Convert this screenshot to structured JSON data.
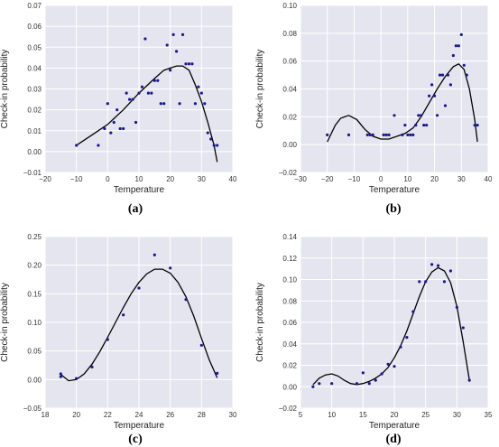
{
  "chart_data": [
    {
      "type": "scatter",
      "panel_label": "(a)",
      "xlabel": "Temperature",
      "ylabel": "Check-in probability",
      "xlim": [
        -20,
        40
      ],
      "ylim": [
        -0.01,
        0.07
      ],
      "xticks": [
        -20,
        -10,
        0,
        10,
        20,
        30,
        40
      ],
      "yticks": [
        -0.01,
        0.0,
        0.01,
        0.02,
        0.03,
        0.04,
        0.05,
        0.06,
        0.07
      ],
      "xtick_labels": [
        "−20",
        "−10",
        "0",
        "10",
        "20",
        "30",
        "40"
      ],
      "ytick_labels": [
        "−0.01",
        "0.00",
        "0.01",
        "0.02",
        "0.03",
        "0.04",
        "0.05",
        "0.06",
        "0.07"
      ],
      "grid": true,
      "points": [
        [
          -10,
          0.003
        ],
        [
          -3,
          0.003
        ],
        [
          -1,
          0.011
        ],
        [
          0,
          0.023
        ],
        [
          1,
          0.009
        ],
        [
          2,
          0.014
        ],
        [
          3,
          0.02
        ],
        [
          4,
          0.011
        ],
        [
          5,
          0.011
        ],
        [
          6,
          0.028
        ],
        [
          7,
          0.025
        ],
        [
          8,
          0.025
        ],
        [
          9,
          0.014
        ],
        [
          10,
          0.028
        ],
        [
          11,
          0.031
        ],
        [
          12,
          0.054
        ],
        [
          13,
          0.028
        ],
        [
          14,
          0.028
        ],
        [
          15,
          0.034
        ],
        [
          16,
          0.034
        ],
        [
          17,
          0.023
        ],
        [
          18,
          0.023
        ],
        [
          19,
          0.051
        ],
        [
          20,
          0.039
        ],
        [
          21,
          0.056
        ],
        [
          22,
          0.048
        ],
        [
          23,
          0.023
        ],
        [
          24,
          0.056
        ],
        [
          25,
          0.042
        ],
        [
          26,
          0.042
        ],
        [
          27,
          0.042
        ],
        [
          28,
          0.023
        ],
        [
          29,
          0.031
        ],
        [
          30,
          0.028
        ],
        [
          31,
          0.023
        ],
        [
          32,
          0.009
        ],
        [
          33,
          0.006
        ],
        [
          34,
          0.003
        ],
        [
          35,
          0.003
        ]
      ],
      "fit": [
        [
          -10,
          0.003
        ],
        [
          -5,
          0.008
        ],
        [
          0,
          0.013
        ],
        [
          5,
          0.02
        ],
        [
          10,
          0.028
        ],
        [
          15,
          0.035
        ],
        [
          18,
          0.039
        ],
        [
          20,
          0.04
        ],
        [
          22,
          0.041
        ],
        [
          24,
          0.041
        ],
        [
          26,
          0.039
        ],
        [
          28,
          0.032
        ],
        [
          30,
          0.024
        ],
        [
          32,
          0.014
        ],
        [
          34,
          0.003
        ],
        [
          35,
          -0.005
        ]
      ]
    },
    {
      "type": "scatter",
      "panel_label": "(b)",
      "xlabel": "Temperature",
      "ylabel": "Check-in probability",
      "xlim": [
        -30,
        40
      ],
      "ylim": [
        -0.02,
        0.1
      ],
      "xticks": [
        -30,
        -20,
        -10,
        0,
        10,
        20,
        30,
        40
      ],
      "yticks": [
        -0.02,
        0.0,
        0.02,
        0.04,
        0.06,
        0.08,
        0.1
      ],
      "xtick_labels": [
        "−30",
        "−20",
        "−10",
        "0",
        "10",
        "20",
        "30",
        "40"
      ],
      "ytick_labels": [
        "−0.02",
        "0.00",
        "0.02",
        "0.04",
        "0.06",
        "0.08",
        "0.10"
      ],
      "grid": true,
      "points": [
        [
          -20,
          0.007
        ],
        [
          -12,
          0.007
        ],
        [
          -5,
          0.007
        ],
        [
          -4,
          0.007
        ],
        [
          -3,
          0.007
        ],
        [
          1,
          0.007
        ],
        [
          2,
          0.007
        ],
        [
          3,
          0.007
        ],
        [
          5,
          0.021
        ],
        [
          8,
          0.007
        ],
        [
          9,
          0.014
        ],
        [
          10,
          0.007
        ],
        [
          11,
          0.007
        ],
        [
          12,
          0.007
        ],
        [
          13,
          0.014
        ],
        [
          14,
          0.021
        ],
        [
          15,
          0.021
        ],
        [
          16,
          0.014
        ],
        [
          17,
          0.014
        ],
        [
          18,
          0.035
        ],
        [
          19,
          0.043
        ],
        [
          20,
          0.035
        ],
        [
          21,
          0.021
        ],
        [
          22,
          0.05
        ],
        [
          23,
          0.05
        ],
        [
          24,
          0.028
        ],
        [
          25,
          0.05
        ],
        [
          26,
          0.043
        ],
        [
          27,
          0.064
        ],
        [
          28,
          0.071
        ],
        [
          29,
          0.071
        ],
        [
          30,
          0.079
        ],
        [
          31,
          0.057
        ],
        [
          32,
          0.05
        ],
        [
          35,
          0.014
        ],
        [
          36,
          0.014
        ]
      ],
      "fit": [
        [
          -20,
          0.002
        ],
        [
          -17,
          0.014
        ],
        [
          -15,
          0.019
        ],
        [
          -12,
          0.021
        ],
        [
          -9,
          0.018
        ],
        [
          -6,
          0.011
        ],
        [
          -3,
          0.006
        ],
        [
          0,
          0.004
        ],
        [
          3,
          0.004
        ],
        [
          6,
          0.006
        ],
        [
          9,
          0.008
        ],
        [
          12,
          0.012
        ],
        [
          15,
          0.02
        ],
        [
          18,
          0.03
        ],
        [
          21,
          0.04
        ],
        [
          24,
          0.049
        ],
        [
          27,
          0.056
        ],
        [
          29,
          0.058
        ],
        [
          31,
          0.054
        ],
        [
          33,
          0.04
        ],
        [
          35,
          0.018
        ],
        [
          36,
          0.002
        ]
      ]
    },
    {
      "type": "scatter",
      "panel_label": "(c)",
      "xlabel": "Temperature",
      "ylabel": "Check-in probability",
      "xlim": [
        18,
        30
      ],
      "ylim": [
        -0.05,
        0.25
      ],
      "xticks": [
        18,
        20,
        22,
        24,
        26,
        28,
        30
      ],
      "yticks": [
        -0.05,
        0.0,
        0.05,
        0.1,
        0.15,
        0.2,
        0.25
      ],
      "xtick_labels": [
        "18",
        "20",
        "22",
        "24",
        "26",
        "28",
        "30"
      ],
      "ytick_labels": [
        "−0.05",
        "0.00",
        "0.05",
        "0.10",
        "0.15",
        "0.20",
        "0.25"
      ],
      "grid": true,
      "points": [
        [
          19,
          0.01
        ],
        [
          19,
          0.005
        ],
        [
          20,
          0.002
        ],
        [
          21,
          0.022
        ],
        [
          22,
          0.07
        ],
        [
          23,
          0.113
        ],
        [
          24,
          0.16
        ],
        [
          25,
          0.218
        ],
        [
          26,
          0.195
        ],
        [
          27,
          0.14
        ],
        [
          28,
          0.06
        ],
        [
          29,
          0.011
        ]
      ],
      "fit": [
        [
          19,
          0.009
        ],
        [
          19.5,
          -0.002
        ],
        [
          20,
          0.0
        ],
        [
          20.5,
          0.01
        ],
        [
          21,
          0.027
        ],
        [
          21.5,
          0.049
        ],
        [
          22,
          0.074
        ],
        [
          22.5,
          0.1
        ],
        [
          23,
          0.126
        ],
        [
          23.5,
          0.15
        ],
        [
          24,
          0.17
        ],
        [
          24.5,
          0.185
        ],
        [
          25,
          0.193
        ],
        [
          25.5,
          0.193
        ],
        [
          26,
          0.186
        ],
        [
          26.5,
          0.17
        ],
        [
          27,
          0.145
        ],
        [
          27.5,
          0.111
        ],
        [
          28,
          0.072
        ],
        [
          28.5,
          0.034
        ],
        [
          29,
          0.003
        ]
      ]
    },
    {
      "type": "scatter",
      "panel_label": "(d)",
      "xlabel": "Temperature",
      "ylabel": "Check-in probability",
      "xlim": [
        5,
        35
      ],
      "ylim": [
        -0.02,
        0.14
      ],
      "xticks": [
        5,
        10,
        15,
        20,
        25,
        30,
        35
      ],
      "yticks": [
        -0.02,
        0.0,
        0.02,
        0.04,
        0.06,
        0.08,
        0.1,
        0.12,
        0.14
      ],
      "xtick_labels": [
        "5",
        "10",
        "15",
        "20",
        "25",
        "30",
        "35"
      ],
      "ytick_labels": [
        "−0.02",
        "0.00",
        "0.02",
        "0.04",
        "0.06",
        "0.08",
        "0.10",
        "0.12",
        "0.14"
      ],
      "grid": true,
      "points": [
        [
          7,
          0.0
        ],
        [
          8,
          0.003
        ],
        [
          10,
          0.003
        ],
        [
          14,
          0.003
        ],
        [
          15,
          0.013
        ],
        [
          16,
          0.003
        ],
        [
          17,
          0.006
        ],
        [
          18,
          0.012
        ],
        [
          19,
          0.021
        ],
        [
          20,
          0.019
        ],
        [
          21,
          0.037
        ],
        [
          22,
          0.046
        ],
        [
          23,
          0.07
        ],
        [
          24,
          0.098
        ],
        [
          25,
          0.098
        ],
        [
          26,
          0.114
        ],
        [
          27,
          0.113
        ],
        [
          28,
          0.098
        ],
        [
          29,
          0.108
        ],
        [
          30,
          0.074
        ],
        [
          31,
          0.055
        ],
        [
          32,
          0.006
        ]
      ],
      "fit": [
        [
          7,
          0.002
        ],
        [
          8,
          0.008
        ],
        [
          9,
          0.011
        ],
        [
          10,
          0.012
        ],
        [
          11,
          0.01
        ],
        [
          12,
          0.006
        ],
        [
          13,
          0.003
        ],
        [
          14,
          0.002
        ],
        [
          15,
          0.003
        ],
        [
          16,
          0.005
        ],
        [
          17,
          0.008
        ],
        [
          18,
          0.012
        ],
        [
          19,
          0.018
        ],
        [
          20,
          0.027
        ],
        [
          21,
          0.038
        ],
        [
          22,
          0.052
        ],
        [
          23,
          0.068
        ],
        [
          24,
          0.084
        ],
        [
          25,
          0.098
        ],
        [
          26,
          0.107
        ],
        [
          27,
          0.111
        ],
        [
          28,
          0.108
        ],
        [
          29,
          0.097
        ],
        [
          30,
          0.075
        ],
        [
          31,
          0.042
        ],
        [
          32,
          0.006
        ]
      ]
    }
  ]
}
